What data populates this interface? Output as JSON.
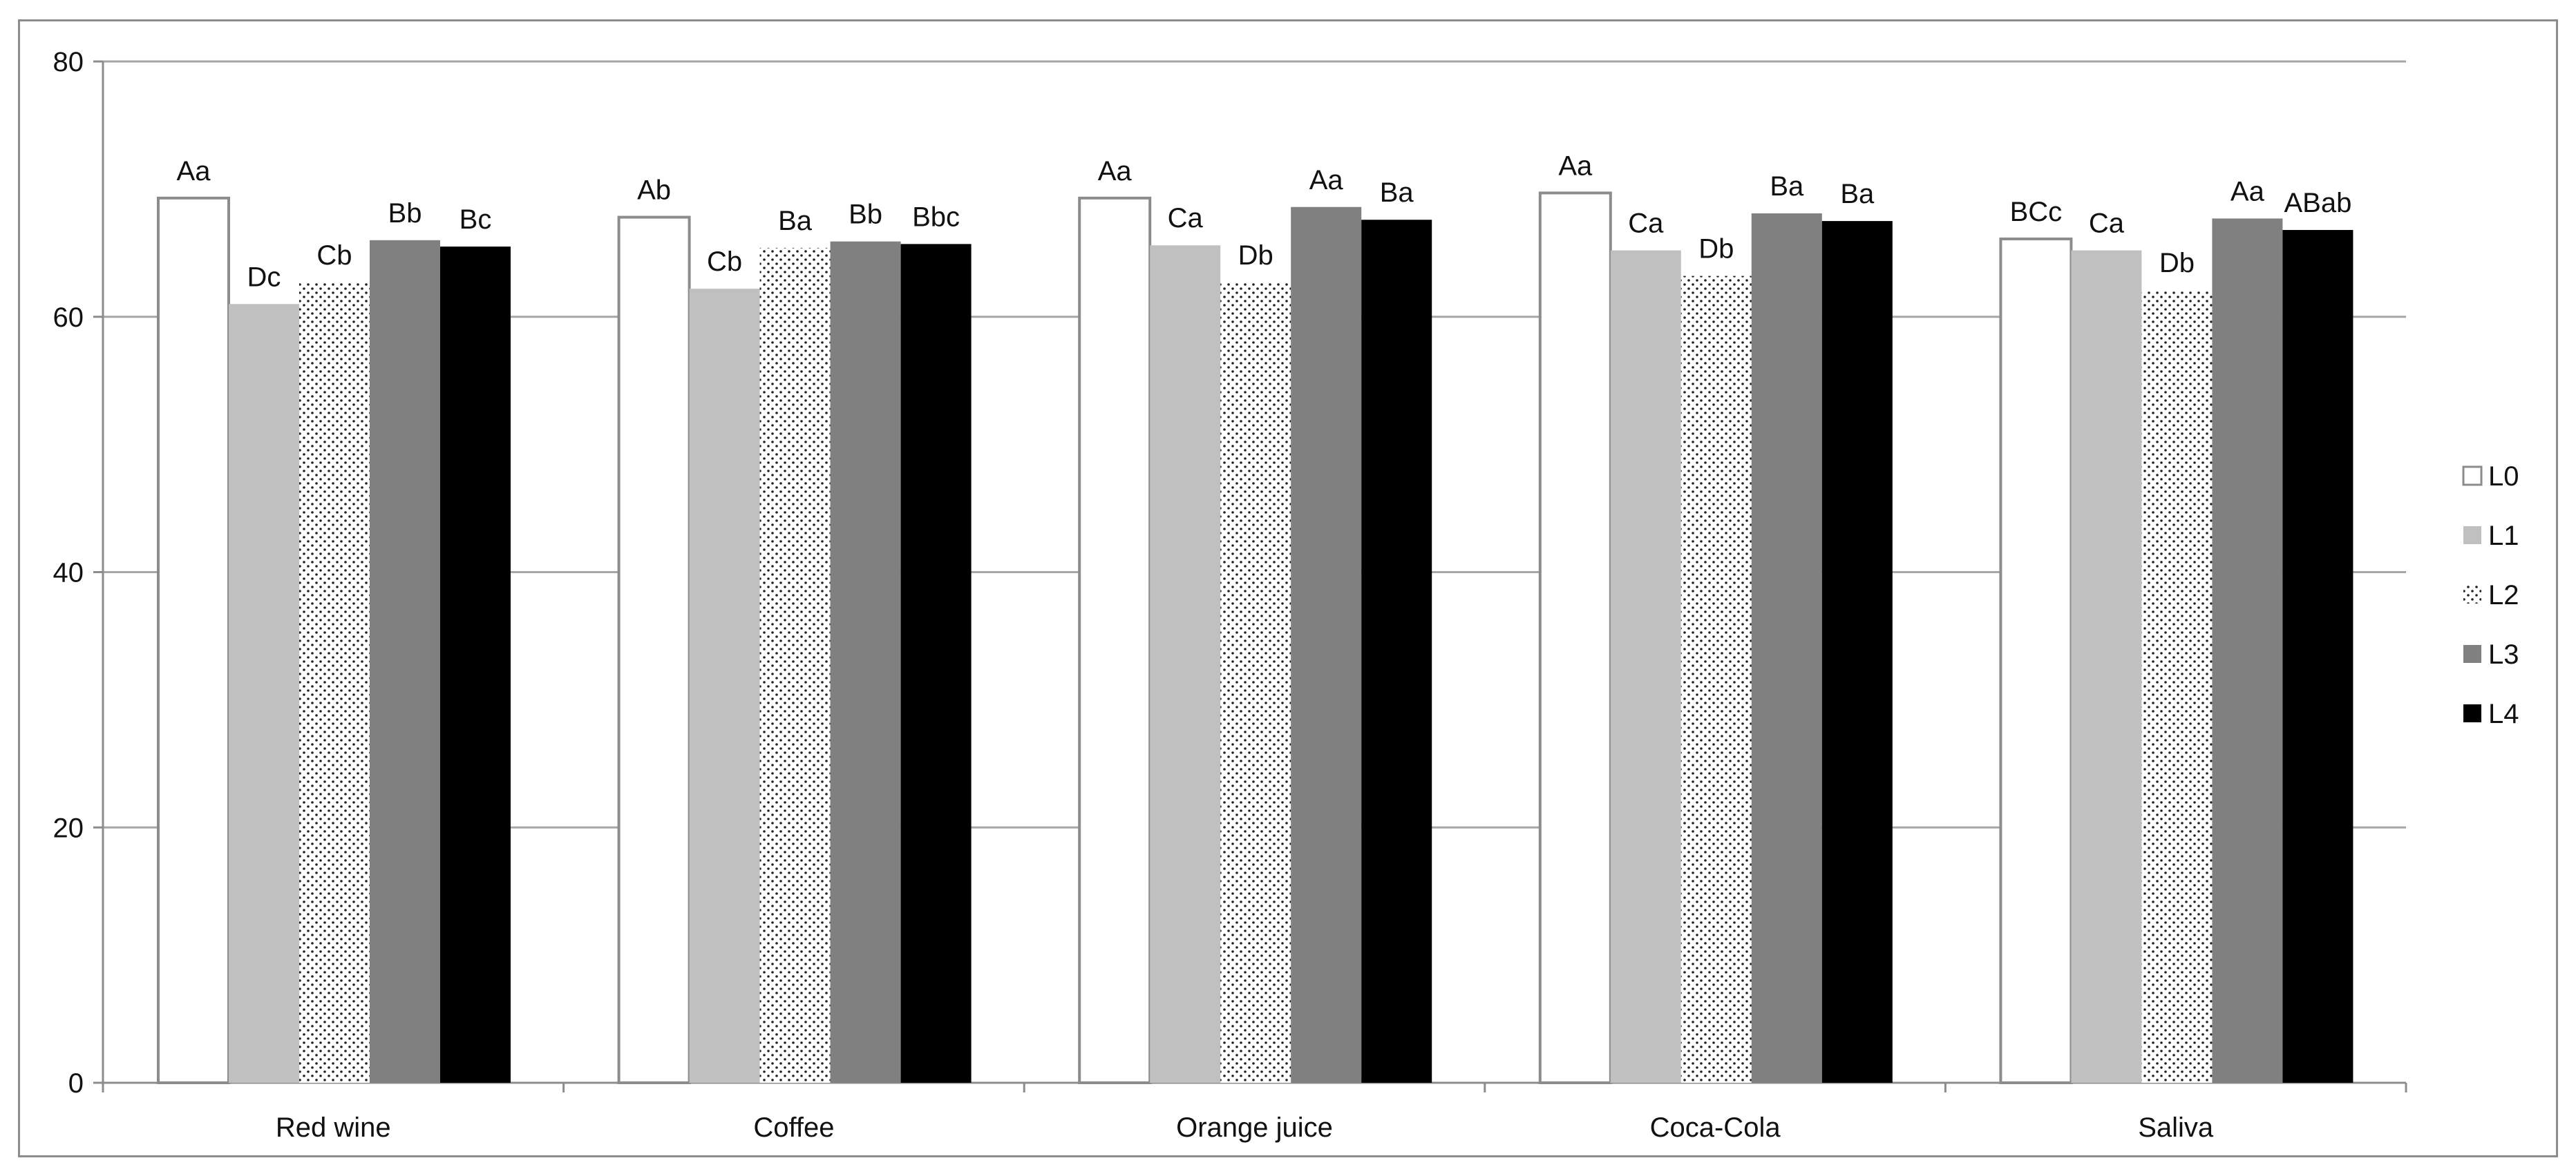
{
  "chart_data": {
    "type": "bar",
    "categories": [
      "Red wine",
      "Coffee",
      "Orange juice",
      "Coca-Cola",
      "Saliva"
    ],
    "series": [
      {
        "name": "L0",
        "values": [
          69.3,
          67.8,
          69.3,
          69.7,
          66.1
        ],
        "labels": [
          "Aa",
          "Ab",
          "Aa",
          "Aa",
          "BCc"
        ],
        "fill": "#ffffff",
        "stroke": "#8c8c8c",
        "pattern": "none"
      },
      {
        "name": "L1",
        "values": [
          61.0,
          62.2,
          65.6,
          65.2,
          65.2
        ],
        "labels": [
          "Dc",
          "Cb",
          "Ca",
          "Ca",
          "Ca"
        ],
        "fill": "#c0c0c0",
        "stroke": "#c0c0c0",
        "pattern": "none"
      },
      {
        "name": "L2",
        "values": [
          62.7,
          65.4,
          62.7,
          63.2,
          62.1
        ],
        "labels": [
          "Cb",
          "Ba",
          "Db",
          "Db",
          "Db"
        ],
        "fill": "#ffffff",
        "stroke": "#ffffff",
        "pattern": "dots"
      },
      {
        "name": "L3",
        "values": [
          66.0,
          65.9,
          68.6,
          68.1,
          67.7
        ],
        "labels": [
          "Bb",
          "Bb",
          "Aa",
          "Ba",
          "Aa"
        ],
        "fill": "#808080",
        "stroke": "#808080",
        "pattern": "none"
      },
      {
        "name": "L4",
        "values": [
          65.5,
          65.7,
          67.6,
          67.5,
          66.8
        ],
        "labels": [
          "Bc",
          "Bbc",
          "Ba",
          "Ba",
          "ABab"
        ],
        "fill": "#000000",
        "stroke": "#000000",
        "pattern": "none"
      }
    ],
    "yticks": [
      0,
      20,
      40,
      60,
      80
    ],
    "ylim": [
      0,
      80
    ],
    "grid": true,
    "legend_position": "right",
    "colors": {
      "grid": "#a6a6a6",
      "axis": "#8c8c8c",
      "frame": "#8c8c8c"
    }
  }
}
